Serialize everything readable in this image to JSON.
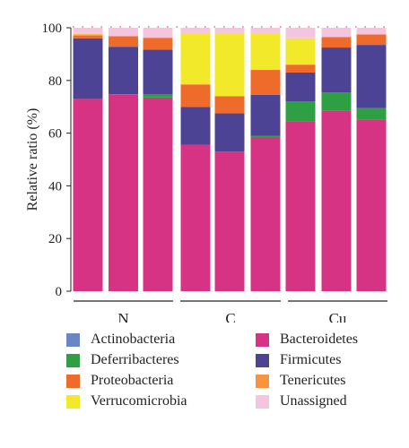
{
  "chart_data": {
    "type": "bar",
    "stacked": true,
    "ylabel": "Relative ratio (%)",
    "ylim": [
      0,
      100
    ],
    "yticks": [
      "0",
      "20",
      "40",
      "60",
      "80",
      "100"
    ],
    "groups": [
      {
        "label": "N",
        "bars": 3
      },
      {
        "label": "C",
        "bars": 3
      },
      {
        "label": "Cu",
        "bars": 3
      }
    ],
    "series": [
      {
        "name": "Bacteroidetes",
        "color": "#d63384",
        "values": [
          73,
          74.5,
          73.5,
          55.5,
          53,
          58.5,
          64.5,
          68.5,
          65
        ]
      },
      {
        "name": "Deferribacteres",
        "color": "#2ea043",
        "values": [
          0,
          0.3,
          1.2,
          0,
          0,
          0.5,
          7.5,
          7,
          4.5
        ]
      },
      {
        "name": "Firmicutes",
        "color": "#4c4394",
        "values": [
          23,
          18,
          17,
          14.5,
          14.5,
          15.5,
          11,
          17,
          24
        ]
      },
      {
        "name": "Actinobacteria",
        "color": "#6b86c2",
        "values": [
          0,
          0,
          0,
          0,
          0,
          0,
          0,
          0,
          0
        ]
      },
      {
        "name": "Proteobacteria",
        "color": "#ef6b2c",
        "values": [
          1,
          4,
          4.5,
          8.5,
          6.5,
          9.5,
          3,
          4,
          4
        ]
      },
      {
        "name": "Tenericutes",
        "color": "#f7943d",
        "values": [
          0.5,
          0,
          0,
          0,
          0,
          0,
          0,
          0,
          0
        ]
      },
      {
        "name": "Verrucomicrobia",
        "color": "#f2e92a",
        "values": [
          0.5,
          0,
          0,
          19.5,
          24,
          14,
          10,
          0,
          0
        ]
      },
      {
        "name": "Unassigned",
        "color": "#f5c4de",
        "values": [
          2,
          3.2,
          3.8,
          2,
          2,
          2,
          4,
          3.5,
          2.5
        ]
      }
    ],
    "legend": {
      "placement": "bottom",
      "columns": [
        [
          "Actinobacteria",
          "Deferribacteres",
          "Proteobacteria",
          "Verrucomicrobia"
        ],
        [
          "Bacteroidetes",
          "Firmicutes",
          "Tenericutes",
          "Unassigned"
        ]
      ]
    },
    "grid": false
  }
}
